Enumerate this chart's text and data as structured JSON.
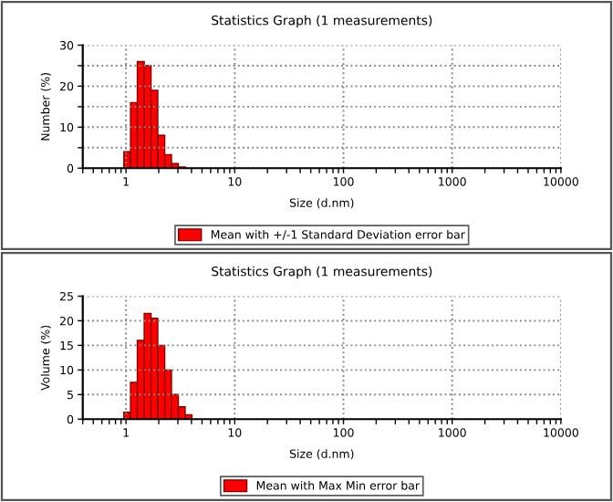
{
  "chart_data": [
    {
      "type": "histogram",
      "title": "Statistics Graph (1 measurements)",
      "xlabel": "Size (d.nm)",
      "ylabel": "Number (%)",
      "log": "x",
      "grid": true,
      "legend": "bottom",
      "bins": [
        0.955,
        1.1,
        1.27,
        1.47,
        1.7,
        1.96,
        2.27,
        2.62,
        3.03,
        3.5
      ],
      "series": [
        {
          "name": "Mean with +/-1 Standard Deviation error bar",
          "color": "#ff0000",
          "values": [
            4,
            16,
            26,
            25,
            19,
            8,
            3.3,
            1.1,
            0.3
          ]
        }
      ],
      "xlim": [
        0.4,
        10000
      ],
      "xticks": [
        1,
        10,
        100,
        1000,
        10000
      ],
      "ylim": [
        0,
        30
      ],
      "yticks": [
        0,
        {
          "value": 5,
          "label": null
        },
        10,
        {
          "value": 15,
          "label": null
        },
        20,
        {
          "value": 25,
          "label": null
        },
        30
      ]
    },
    {
      "type": "histogram",
      "title": "Statistics Graph (1 measurements)",
      "xlabel": "Size (d.nm)",
      "ylabel": "Volume (%)",
      "log": "x",
      "grid": true,
      "legend": "bottom",
      "bins": [
        0.955,
        1.1,
        1.27,
        1.47,
        1.7,
        1.96,
        2.27,
        2.62,
        3.03,
        3.5,
        4.04
      ],
      "series": [
        {
          "name": "Mean with Max Min error bar",
          "color": "#ff0000",
          "values": [
            1.4,
            7.5,
            16,
            21.5,
            20.5,
            15,
            10,
            5,
            2.5,
            0.9
          ]
        }
      ],
      "xlim": [
        0.4,
        10000
      ],
      "xticks": [
        1,
        10,
        100,
        1000,
        10000
      ],
      "ylim": [
        0,
        25
      ],
      "yticks": [
        0,
        5,
        10,
        15,
        20,
        25
      ]
    }
  ]
}
